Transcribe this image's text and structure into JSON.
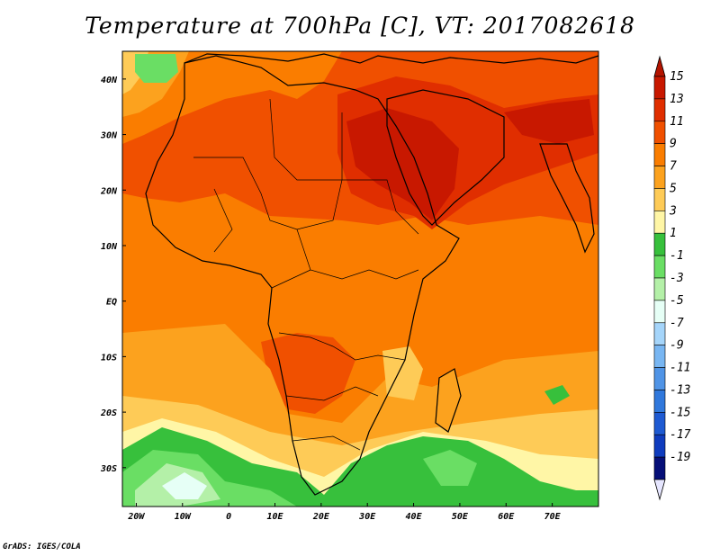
{
  "title": "Temperature at 700hPa [C], VT: 2017082618",
  "footer": "GrADS: IGES/COLA",
  "map": {
    "lon_range": [
      -23,
      80
    ],
    "lat_range": [
      -37,
      45
    ],
    "lon_ticks": [
      {
        "value": -20,
        "label": "20W"
      },
      {
        "value": -10,
        "label": "10W"
      },
      {
        "value": 0,
        "label": "0"
      },
      {
        "value": 10,
        "label": "10E"
      },
      {
        "value": 20,
        "label": "20E"
      },
      {
        "value": 30,
        "label": "30E"
      },
      {
        "value": 40,
        "label": "40E"
      },
      {
        "value": 50,
        "label": "50E"
      },
      {
        "value": 60,
        "label": "60E"
      },
      {
        "value": 70,
        "label": "70E"
      }
    ],
    "lat_ticks": [
      {
        "value": 40,
        "label": "40N"
      },
      {
        "value": 30,
        "label": "30N"
      },
      {
        "value": 20,
        "label": "20N"
      },
      {
        "value": 10,
        "label": "10N"
      },
      {
        "value": 0,
        "label": "EQ"
      },
      {
        "value": -10,
        "label": "10S"
      },
      {
        "value": -20,
        "label": "20S"
      },
      {
        "value": -30,
        "label": "30S"
      }
    ]
  },
  "colorbar": {
    "labels": [
      "15",
      "13",
      "11",
      "9",
      "7",
      "5",
      "3",
      "1",
      "-1",
      "-3",
      "-5",
      "-7",
      "-9",
      "-11",
      "-13",
      "-15",
      "-17",
      "-19"
    ],
    "colors": [
      "#c81800",
      "#e02e00",
      "#f05000",
      "#fa7d00",
      "#fca21e",
      "#fecb57",
      "#fff6a6",
      "#37c03c",
      "#6ade64",
      "#b4f0a8",
      "#e6fff6",
      "#a5d5fa",
      "#78b6f2",
      "#5094e6",
      "#3078dc",
      "#1e5ad2",
      "#0f3cbe",
      "#060f78"
    ],
    "arrow_top_color": "#b41400",
    "arrow_bottom_color": "#e6e6ff"
  },
  "field_colors": {
    "c15": "#c81800",
    "c13": "#e02e00",
    "c11": "#f05000",
    "c9": "#fa7d00",
    "c7": "#fca21e",
    "c5": "#fecb57",
    "c3": "#fff6a6",
    "c1": "#37c03c",
    "cm1": "#6ade64",
    "cm3": "#b4f0a8",
    "cm5": "#e6fff6"
  }
}
